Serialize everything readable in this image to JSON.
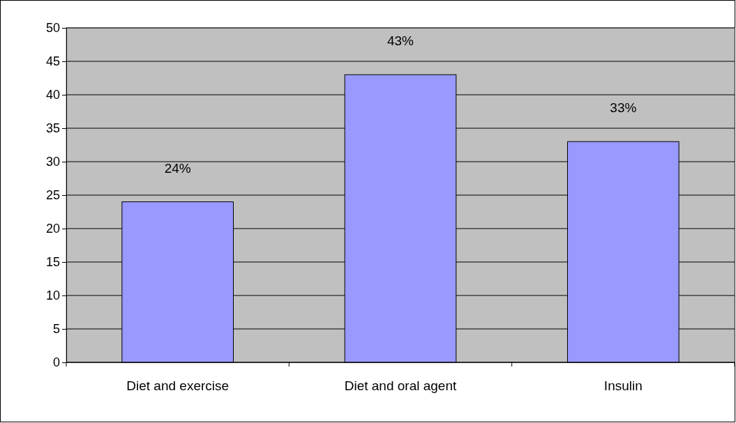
{
  "chart_data": {
    "type": "bar",
    "categories": [
      "Diet and exercise",
      "Diet and oral agent",
      "Insulin"
    ],
    "values": [
      24,
      43,
      33
    ],
    "color": "#9999ff",
    "value_labels": [
      "24%",
      "43%",
      "33%"
    ],
    "ylim": [
      0,
      50
    ],
    "yticks": [
      0,
      5,
      10,
      15,
      20,
      25,
      30,
      35,
      40,
      45,
      50
    ],
    "grid": "y"
  }
}
